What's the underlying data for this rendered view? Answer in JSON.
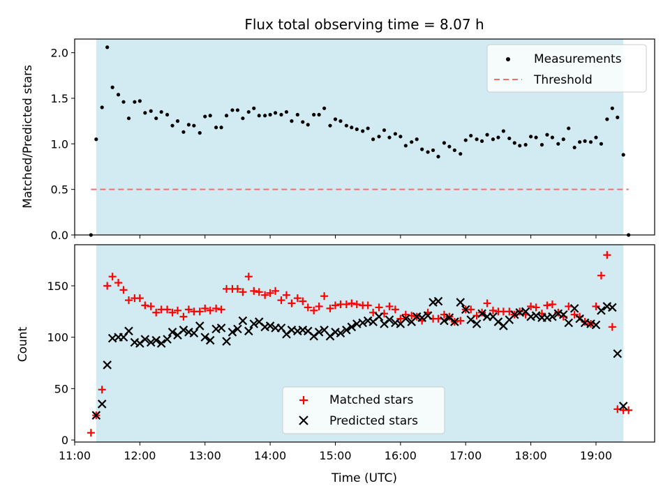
{
  "title": "Flux total observing time = 8.07 h",
  "colors": {
    "shade": "#add8e6",
    "matched": "#ff0000",
    "predicted": "#000000",
    "threshold": "#ff6b6b",
    "ratio": "#000000"
  },
  "chart_data": [
    {
      "type": "scatter",
      "ylabel": "Matched/Predicted stars",
      "xlim": [
        11.0,
        19.9
      ],
      "ylim": [
        0,
        2.15
      ],
      "yticks": [
        "0.0",
        "0.5",
        "1.0",
        "1.5",
        "2.0"
      ],
      "shaded_interval": [
        11.33,
        19.42
      ],
      "legend": {
        "position": "top-right",
        "entries": [
          "Measurements",
          "Threshold"
        ]
      },
      "threshold": {
        "name": "Threshold",
        "y": 0.5,
        "x": [
          11.25,
          19.5
        ]
      },
      "series": [
        {
          "name": "Measurements",
          "x": [
            11.25,
            11.33,
            11.42,
            11.5,
            11.58,
            11.67,
            11.75,
            11.83,
            11.92,
            12.0,
            12.08,
            12.17,
            12.25,
            12.33,
            12.42,
            12.5,
            12.58,
            12.67,
            12.75,
            12.83,
            12.92,
            13.0,
            13.08,
            13.17,
            13.25,
            13.33,
            13.42,
            13.5,
            13.58,
            13.67,
            13.75,
            13.83,
            13.92,
            14.0,
            14.08,
            14.17,
            14.25,
            14.33,
            14.42,
            14.5,
            14.58,
            14.67,
            14.75,
            14.83,
            14.92,
            15.0,
            15.08,
            15.17,
            15.25,
            15.33,
            15.42,
            15.5,
            15.58,
            15.67,
            15.75,
            15.83,
            15.92,
            16.0,
            16.08,
            16.17,
            16.25,
            16.33,
            16.42,
            16.5,
            16.58,
            16.67,
            16.75,
            16.83,
            16.92,
            17.0,
            17.08,
            17.17,
            17.25,
            17.33,
            17.42,
            17.5,
            17.58,
            17.67,
            17.75,
            17.83,
            17.92,
            18.0,
            18.08,
            18.17,
            18.25,
            18.33,
            18.42,
            18.5,
            18.58,
            18.67,
            18.75,
            18.83,
            18.92,
            19.0,
            19.08,
            19.17,
            19.25,
            19.33,
            19.42,
            19.5
          ],
          "y": [
            0.0,
            1.05,
            1.4,
            2.06,
            1.62,
            1.54,
            1.46,
            1.28,
            1.46,
            1.47,
            1.34,
            1.36,
            1.28,
            1.35,
            1.32,
            1.2,
            1.25,
            1.13,
            1.21,
            1.2,
            1.12,
            1.3,
            1.31,
            1.18,
            1.18,
            1.31,
            1.37,
            1.37,
            1.28,
            1.35,
            1.39,
            1.31,
            1.31,
            1.32,
            1.34,
            1.32,
            1.35,
            1.25,
            1.32,
            1.24,
            1.21,
            1.32,
            1.32,
            1.39,
            1.2,
            1.27,
            1.25,
            1.2,
            1.18,
            1.16,
            1.14,
            1.17,
            1.05,
            1.08,
            1.15,
            1.07,
            1.11,
            1.08,
            0.98,
            1.02,
            1.05,
            0.94,
            0.91,
            0.93,
            0.86,
            1.01,
            0.97,
            0.93,
            0.89,
            1.04,
            1.09,
            1.05,
            1.03,
            1.1,
            1.05,
            1.07,
            1.14,
            1.06,
            1.01,
            0.98,
            0.99,
            1.08,
            1.07,
            0.99,
            1.1,
            1.07,
            1.0,
            1.05,
            1.17,
            0.96,
            1.02,
            1.03,
            1.02,
            1.07,
            1.0,
            1.27,
            1.39,
            1.29,
            0.88,
            0.0
          ]
        }
      ]
    },
    {
      "type": "scatter",
      "xlabel": "Time (UTC)",
      "ylabel": "Count",
      "xlim": [
        11.0,
        19.9
      ],
      "ylim": [
        -2,
        190
      ],
      "yticks": [
        "0",
        "50",
        "100",
        "150"
      ],
      "xticks": [
        "11:00",
        "12:00",
        "13:00",
        "14:00",
        "15:00",
        "16:00",
        "17:00",
        "18:00",
        "19:00"
      ],
      "shaded_interval": [
        11.33,
        19.42
      ],
      "legend": {
        "position": "bottom-center",
        "entries": [
          "Matched stars",
          "Predicted stars"
        ]
      },
      "series": [
        {
          "name": "Matched stars",
          "x": [
            11.25,
            11.33,
            11.42,
            11.5,
            11.58,
            11.67,
            11.75,
            11.83,
            11.92,
            12.0,
            12.08,
            12.17,
            12.25,
            12.33,
            12.42,
            12.5,
            12.58,
            12.67,
            12.75,
            12.83,
            12.92,
            13.0,
            13.08,
            13.17,
            13.25,
            13.33,
            13.42,
            13.5,
            13.58,
            13.67,
            13.75,
            13.83,
            13.92,
            14.0,
            14.08,
            14.17,
            14.25,
            14.33,
            14.42,
            14.5,
            14.58,
            14.67,
            14.75,
            14.83,
            14.92,
            15.0,
            15.08,
            15.17,
            15.25,
            15.33,
            15.42,
            15.5,
            15.58,
            15.67,
            15.75,
            15.83,
            15.92,
            16.0,
            16.08,
            16.17,
            16.25,
            16.33,
            16.42,
            16.5,
            16.58,
            16.67,
            16.75,
            16.83,
            16.92,
            17.0,
            17.08,
            17.17,
            17.25,
            17.33,
            17.42,
            17.5,
            17.58,
            17.67,
            17.75,
            17.83,
            17.92,
            18.0,
            18.08,
            18.17,
            18.25,
            18.33,
            18.42,
            18.5,
            18.58,
            18.67,
            18.75,
            18.83,
            18.92,
            19.0,
            19.08,
            19.17,
            19.25,
            19.33,
            19.42,
            19.5
          ],
          "y": [
            7,
            24,
            49,
            150,
            159,
            153,
            146,
            136,
            138,
            138,
            131,
            130,
            124,
            127,
            127,
            124,
            126,
            120,
            127,
            125,
            125,
            128,
            126,
            128,
            127,
            147,
            147,
            147,
            144,
            159,
            145,
            144,
            141,
            143,
            145,
            136,
            141,
            133,
            138,
            135,
            129,
            126,
            130,
            140,
            128,
            131,
            132,
            132,
            133,
            132,
            131,
            131,
            124,
            129,
            123,
            130,
            127,
            118,
            122,
            121,
            120,
            116,
            124,
            118,
            118,
            122,
            120,
            115,
            116,
            127,
            127,
            121,
            124,
            133,
            126,
            125,
            125,
            125,
            122,
            125,
            122,
            130,
            129,
            123,
            131,
            132,
            124,
            120,
            130,
            122,
            120,
            115,
            113,
            130,
            160,
            180,
            110,
            30,
            29,
            29
          ],
          "marker": "plus"
        },
        {
          "name": "Predicted stars",
          "x": [
            11.33,
            11.42,
            11.5,
            11.58,
            11.67,
            11.75,
            11.83,
            11.92,
            12.0,
            12.08,
            12.17,
            12.25,
            12.33,
            12.42,
            12.5,
            12.58,
            12.67,
            12.75,
            12.83,
            12.92,
            13.0,
            13.08,
            13.17,
            13.25,
            13.33,
            13.42,
            13.5,
            13.58,
            13.67,
            13.75,
            13.83,
            13.92,
            14.0,
            14.08,
            14.17,
            14.25,
            14.33,
            14.42,
            14.5,
            14.58,
            14.67,
            14.75,
            14.83,
            14.92,
            15.0,
            15.08,
            15.17,
            15.25,
            15.33,
            15.42,
            15.5,
            15.58,
            15.67,
            15.75,
            15.83,
            15.92,
            16.0,
            16.08,
            16.17,
            16.25,
            16.33,
            16.42,
            16.5,
            16.58,
            16.67,
            16.75,
            16.83,
            16.92,
            17.0,
            17.08,
            17.17,
            17.25,
            17.33,
            17.42,
            17.5,
            17.58,
            17.67,
            17.75,
            17.83,
            17.92,
            18.0,
            18.08,
            18.17,
            18.25,
            18.33,
            18.42,
            18.5,
            18.58,
            18.67,
            18.75,
            18.83,
            18.92,
            19.0,
            19.08,
            19.17,
            19.25,
            19.33,
            19.42
          ],
          "y": [
            24,
            35,
            73,
            99,
            100,
            100,
            106,
            95,
            94,
            98,
            95,
            97,
            94,
            98,
            105,
            102,
            107,
            105,
            104,
            111,
            100,
            97,
            108,
            109,
            96,
            105,
            108,
            116,
            106,
            113,
            115,
            110,
            111,
            109,
            109,
            103,
            107,
            106,
            107,
            106,
            101,
            105,
            107,
            101,
            105,
            104,
            107,
            110,
            113,
            114,
            116,
            115,
            120,
            113,
            117,
            114,
            113,
            118,
            115,
            120,
            119,
            121,
            134,
            135,
            116,
            119,
            115,
            134,
            127,
            117,
            113,
            123,
            120,
            120,
            115,
            111,
            117,
            122,
            124,
            125,
            120,
            121,
            119,
            119,
            120,
            123,
            122,
            114,
            128,
            118,
            114,
            113,
            112,
            126,
            130,
            129,
            84,
            33
          ],
          "marker": "x"
        }
      ]
    }
  ]
}
